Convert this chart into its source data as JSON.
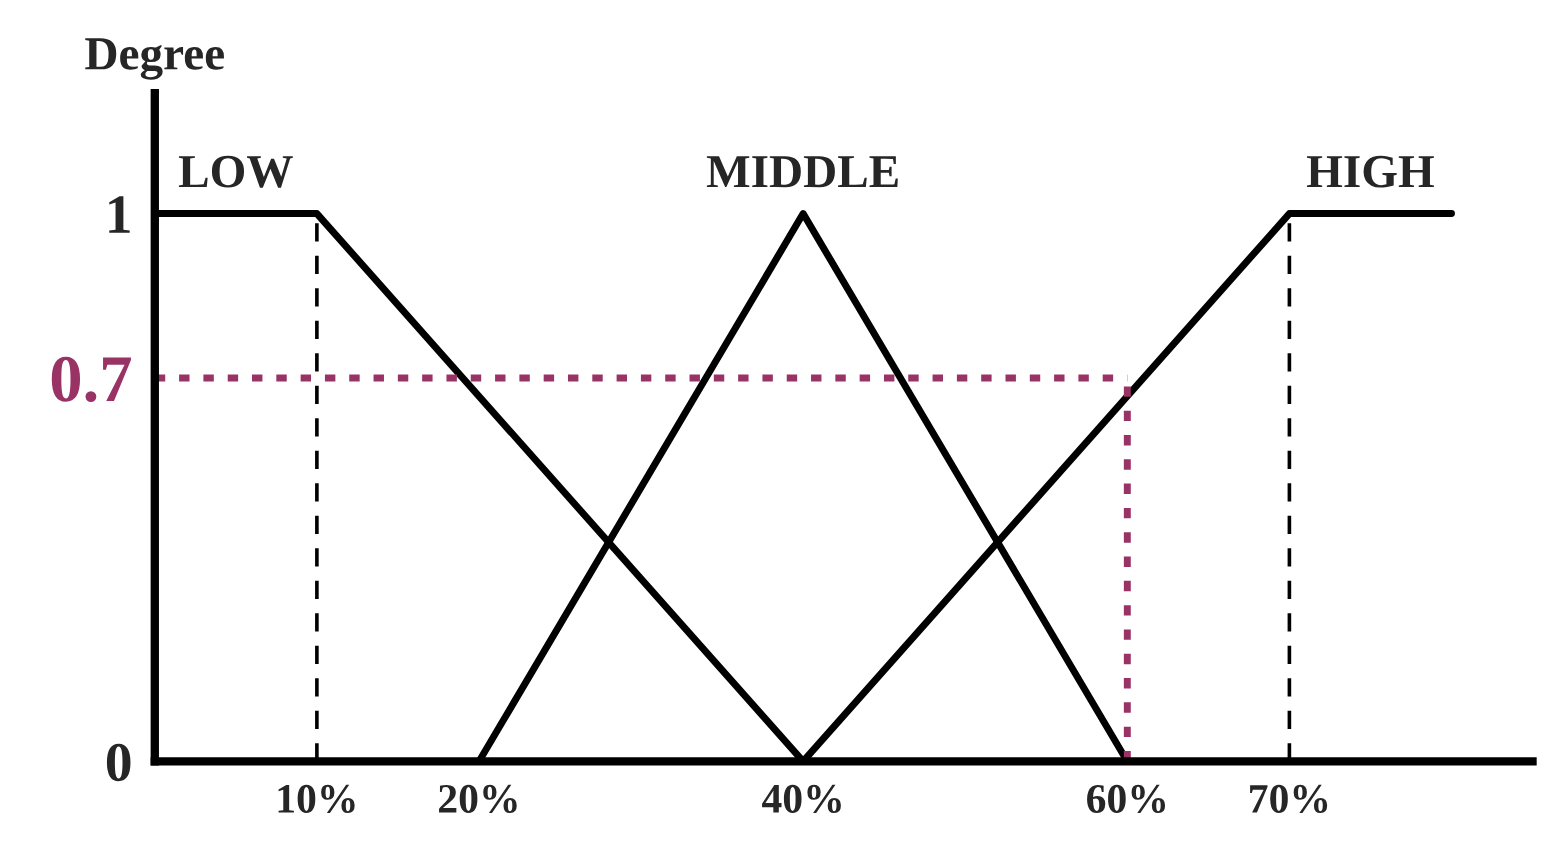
{
  "chart_data": {
    "type": "line",
    "ylabel": "Degree",
    "series": [
      {
        "name": "LOW",
        "color": "#000000",
        "x": [
          0,
          10,
          40
        ],
        "values": [
          1,
          1,
          0
        ]
      },
      {
        "name": "MIDDLE",
        "color": "#000000",
        "x": [
          20,
          40,
          60
        ],
        "values": [
          0,
          1,
          0
        ]
      },
      {
        "name": "HIGH",
        "color": "#000000",
        "x": [
          40,
          70,
          80
        ],
        "values": [
          0,
          1,
          1
        ]
      }
    ],
    "xlim": [
      0,
      85
    ],
    "ylim": [
      0,
      1.22
    ],
    "xticks": [
      {
        "value": 10,
        "label": "10%"
      },
      {
        "value": 20,
        "label": "20%"
      },
      {
        "value": 40,
        "label": "40%"
      },
      {
        "value": 60,
        "label": "60%"
      },
      {
        "value": 70,
        "label": "70%"
      }
    ],
    "yticks": [
      0,
      0.7,
      1
    ],
    "ref_lines": [
      {
        "axis": "x",
        "value": 10,
        "color": "#000000",
        "line_style": "dashed"
      },
      {
        "axis": "x",
        "value": 70,
        "color": "#000000",
        "line_style": "dashed"
      },
      {
        "axis": "y",
        "value": 0.7,
        "color": "#993366",
        "line_style": "dotted"
      },
      {
        "axis": "x",
        "value": 60,
        "color": "#993366",
        "line_style": "dotted"
      }
    ],
    "grid": false,
    "legend": false,
    "marker": "none",
    "line_style": "solid"
  }
}
